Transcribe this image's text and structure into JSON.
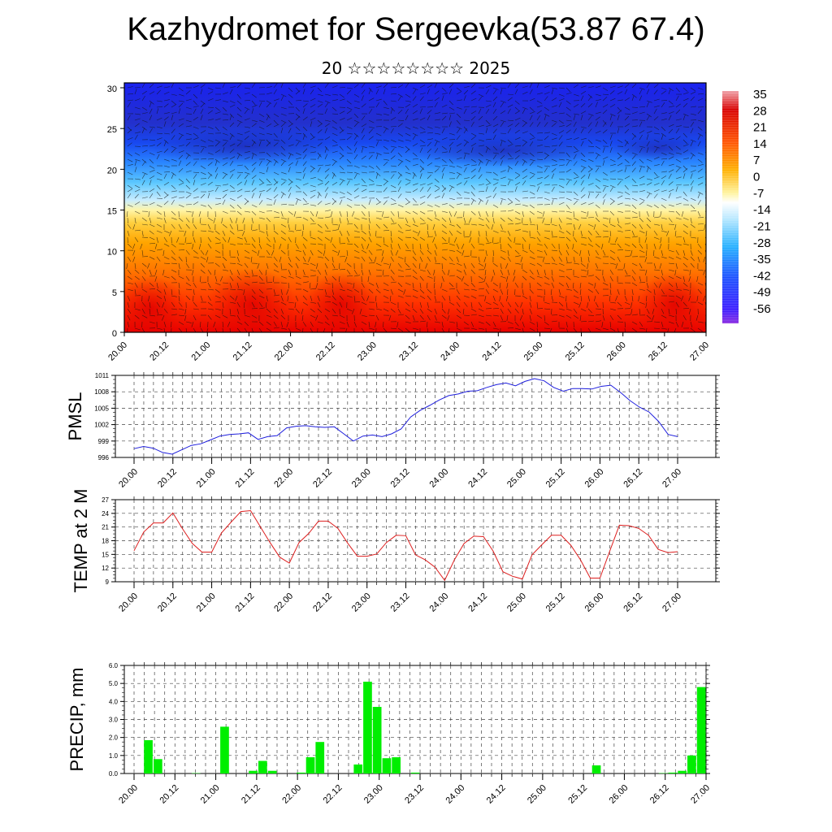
{
  "header": {
    "title": "Kazhydromet for Sergeevka(53.87 67.4)",
    "subtitle": "20 ☆☆☆☆☆☆☆☆ 2025"
  },
  "colors": {
    "pmsl_line": "#1f1fdd",
    "temp_line": "#dd1f1f",
    "precip_bar": "#00ee00"
  },
  "chart_data": [
    {
      "type": "heatmap",
      "name": "cross-section",
      "y_ticks": [
        0,
        5,
        10,
        15,
        20,
        25,
        30
      ],
      "ylim": [
        0,
        30.6
      ],
      "x_tick_labels": [
        "20.00",
        "20.12",
        "21.00",
        "21.12",
        "22.00",
        "22.12",
        "23.00",
        "23.12",
        "24.00",
        "24.12",
        "25.00",
        "25.12",
        "26.00",
        "26.12",
        "27.00"
      ],
      "colorbar_labels": [
        "35",
        "28",
        "21",
        "14",
        "7",
        "0",
        "-7",
        "-14",
        "-21",
        "-28",
        "-35",
        "-42",
        "-49",
        "-56"
      ],
      "overlay": "wind barbs"
    },
    {
      "type": "line",
      "name": "PMSL",
      "ylabel": "PMSL",
      "y_ticks": [
        996,
        999,
        1002,
        1005,
        1008,
        1011
      ],
      "ylim": [
        996,
        1011
      ],
      "x_tick_labels": [
        "20.00",
        "20.12",
        "21.00",
        "21.12",
        "22.00",
        "22.12",
        "23.00",
        "23.12",
        "24.00",
        "24.12",
        "25.00",
        "25.12",
        "26.00",
        "26.12",
        "27.00"
      ],
      "values": [
        997.6,
        998.0,
        997.7,
        996.9,
        996.6,
        997.4,
        998.2,
        998.5,
        999.2,
        999.9,
        1000.2,
        1000.3,
        1000.5,
        999.3,
        999.8,
        1000.0,
        1001.4,
        1001.7,
        1001.8,
        1001.6,
        1001.5,
        1001.6,
        1000.3,
        999.0,
        999.9,
        1000.1,
        999.8,
        1000.3,
        1001.2,
        1003.4,
        1004.6,
        1005.5,
        1006.5,
        1007.3,
        1007.6,
        1008.1,
        1008.2,
        1008.8,
        1009.3,
        1009.6,
        1009.1,
        1009.9,
        1010.4,
        1010.0,
        1008.8,
        1008.1,
        1008.6,
        1008.6,
        1008.5,
        1009.0,
        1009.2,
        1007.9,
        1006.4,
        1005.2,
        1004.3,
        1002.6,
        1000.2,
        999.8
      ],
      "x_index_max": 57
    },
    {
      "type": "line",
      "name": "TEMP",
      "ylabel": "TEMP at 2 M",
      "y_ticks": [
        9,
        12,
        15,
        18,
        21,
        24,
        27
      ],
      "ylim": [
        9,
        27
      ],
      "x_tick_labels": [
        "20.00",
        "20.12",
        "21.00",
        "21.12",
        "22.00",
        "22.12",
        "23.00",
        "23.12",
        "24.00",
        "24.12",
        "25.00",
        "25.12",
        "26.00",
        "26.12",
        "27.00"
      ],
      "values": [
        15.8,
        19.9,
        21.9,
        21.9,
        24.1,
        20.6,
        17.4,
        15.5,
        15.5,
        19.7,
        22.1,
        24.4,
        24.6,
        21.1,
        17.6,
        14.4,
        13.1,
        17.6,
        19.6,
        22.3,
        22.3,
        20.7,
        17.5,
        14.6,
        14.6,
        15.1,
        17.6,
        19.2,
        19.1,
        14.9,
        13.8,
        12.2,
        9.3,
        13.8,
        17.4,
        19.0,
        18.9,
        15.7,
        11.2,
        10.2,
        9.6,
        14.9,
        17.1,
        19.2,
        19.2,
        17.0,
        13.8,
        9.8,
        9.8,
        15.7,
        21.4,
        21.3,
        20.7,
        19.2,
        16.1,
        15.4,
        15.6
      ],
      "x_index_max": 56
    },
    {
      "type": "bar",
      "name": "PRECIP",
      "ylabel": "PRECIP, mm",
      "y_tick_labels": [
        "0.0",
        "1.0",
        "2.0",
        "3.0",
        "4.0",
        "5.0",
        "6.0"
      ],
      "ylim": [
        0,
        6
      ],
      "x_tick_labels": [
        "20.00",
        "20.12",
        "21.00",
        "21.12",
        "22.00",
        "22.12",
        "23.00",
        "23.12",
        "24.00",
        "24.12",
        "25.00",
        "25.12",
        "26.00",
        "26.12",
        "27.00"
      ],
      "values": [
        0,
        0,
        1.85,
        0.8,
        0,
        0,
        0,
        0.02,
        0,
        0,
        2.6,
        0,
        0,
        0.15,
        0.7,
        0.15,
        0,
        0,
        0.05,
        0.9,
        1.75,
        0,
        0,
        0,
        0.5,
        5.1,
        3.7,
        0.85,
        0.9,
        0,
        0.05,
        0,
        0,
        0,
        0,
        0,
        0,
        0,
        0,
        0,
        0,
        0,
        0,
        0,
        0,
        0,
        0,
        0,
        0,
        0.45,
        0,
        0,
        0,
        0,
        0,
        0,
        0.02,
        0.05,
        0.15,
        1.0,
        4.8
      ]
    }
  ]
}
